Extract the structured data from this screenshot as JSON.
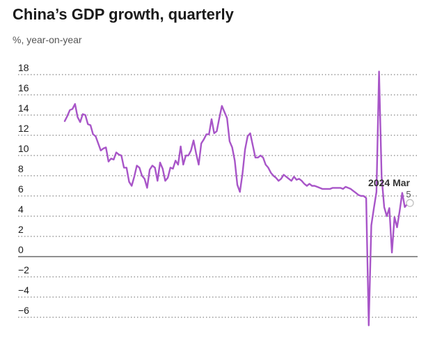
{
  "chart_data": {
    "type": "line",
    "title": "China’s GDP growth, quarterly",
    "subtitle": "%, year-on-year",
    "xlabel": "",
    "ylabel": "",
    "ylim": [
      -6,
      18
    ],
    "yticks": [
      18,
      16,
      14,
      12,
      10,
      8,
      6,
      4,
      2,
      0,
      -2,
      -4,
      -6
    ],
    "grid": true,
    "line_color": "#a855c8",
    "series": [
      {
        "name": "",
        "values": [
          13.4,
          13.9,
          14.5,
          14.6,
          15.1,
          13.8,
          13.3,
          14.1,
          14.0,
          13.1,
          13.0,
          12.1,
          11.9,
          11.2,
          10.5,
          10.7,
          10.8,
          9.4,
          9.7,
          9.6,
          10.3,
          10.1,
          10.0,
          8.8,
          8.8,
          7.4,
          7.0,
          7.9,
          9.0,
          8.8,
          8.0,
          7.7,
          6.8,
          8.6,
          9.0,
          8.8,
          7.5,
          9.3,
          8.7,
          7.5,
          7.8,
          8.8,
          8.7,
          9.5,
          9.1,
          10.9,
          9.1,
          10.0,
          10.0,
          10.5,
          11.5,
          10.2,
          9.1,
          11.2,
          11.6,
          12.1,
          12.1,
          13.6,
          12.2,
          12.4,
          13.7,
          14.9,
          14.3,
          13.7,
          11.4,
          10.8,
          9.5,
          7.1,
          6.4,
          8.2,
          10.6,
          11.9,
          12.2,
          11.0,
          9.8,
          9.8,
          10.0,
          9.8,
          9.1,
          8.8,
          8.3,
          8.0,
          7.8,
          7.5,
          7.7,
          8.1,
          7.9,
          7.7,
          7.5,
          7.9,
          7.6,
          7.7,
          7.5,
          7.2,
          7.0,
          7.2,
          7.0,
          7.0,
          6.9,
          6.8,
          6.7,
          6.7,
          6.7,
          6.7,
          6.8,
          6.8,
          6.8,
          6.8,
          6.7,
          6.9,
          6.8,
          6.7,
          6.5,
          6.3,
          6.1,
          6.0,
          6.0,
          5.8,
          -6.8,
          3.1,
          4.8,
          6.4,
          18.3,
          7.9,
          4.9,
          4.0,
          4.8,
          0.4,
          3.9,
          2.9,
          4.5,
          6.3,
          4.9,
          5.2,
          5.3
        ]
      }
    ],
    "annotation": {
      "label": "2024 Mar",
      "value": "5"
    }
  }
}
